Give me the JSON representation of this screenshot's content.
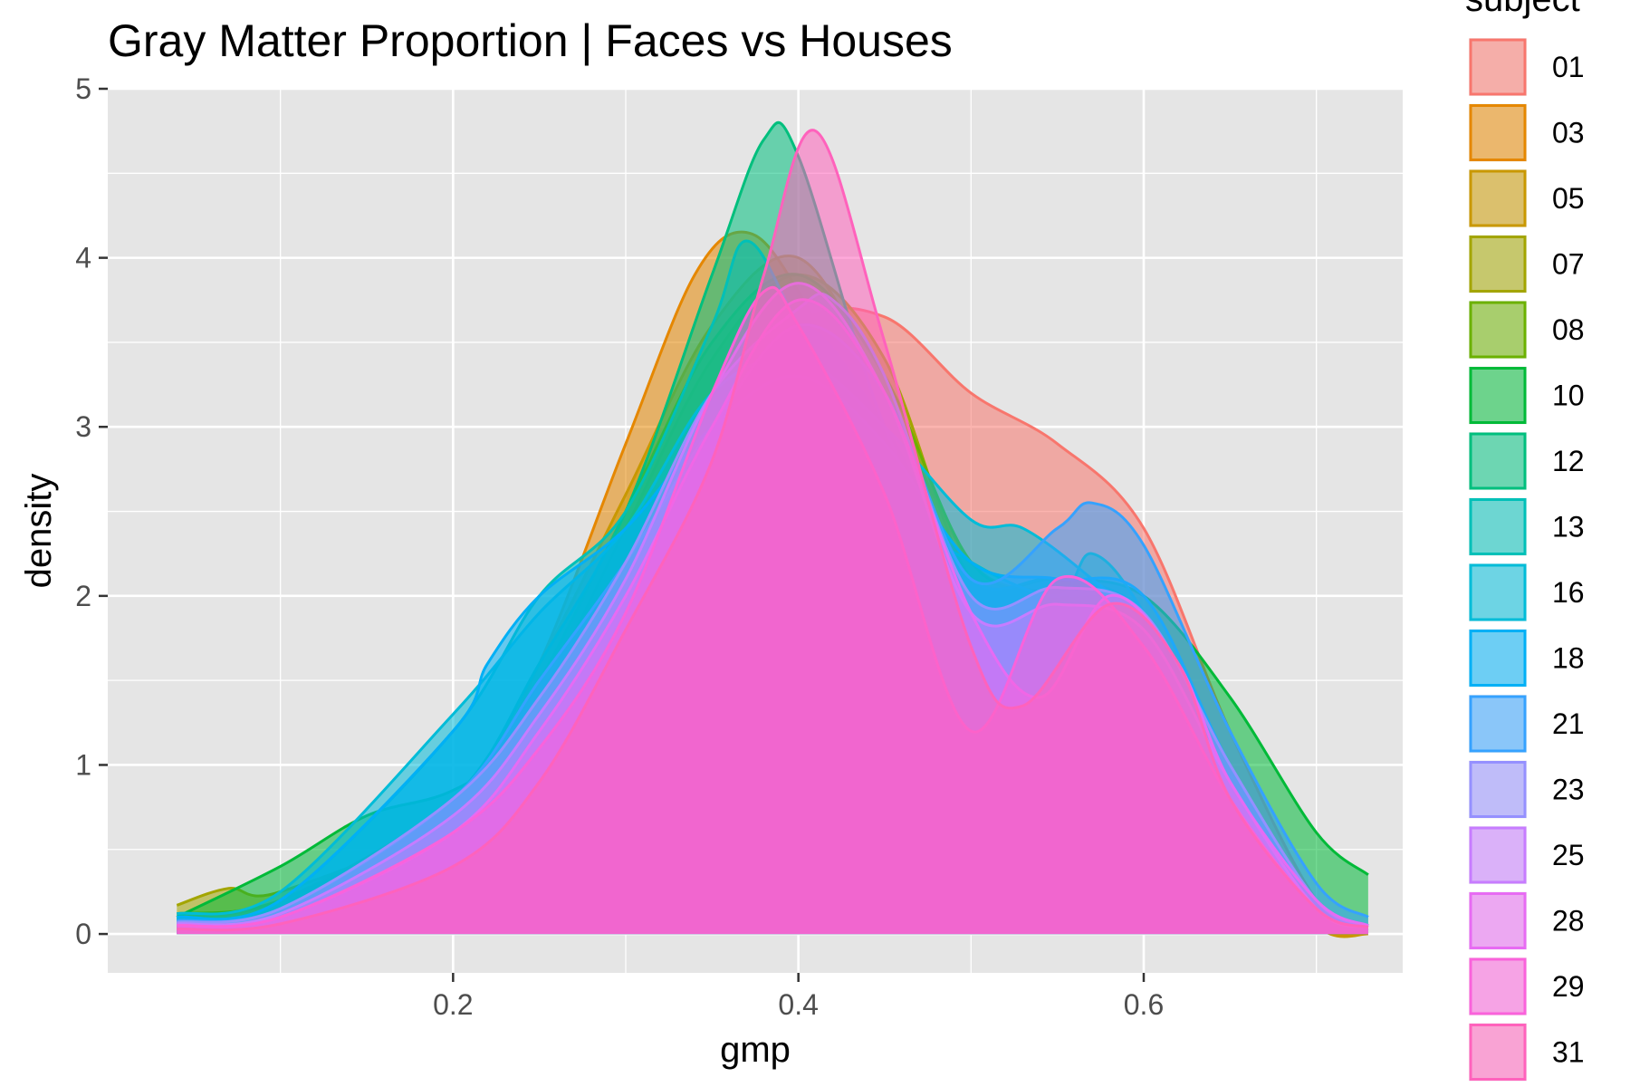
{
  "chart_data": {
    "type": "area",
    "subtype": "density",
    "title": "Gray Matter Proportion | Faces vs Houses",
    "xlabel": "gmp",
    "ylabel": "density",
    "xlim": [
      0.0,
      0.75
    ],
    "ylim": [
      -0.23,
      5.0
    ],
    "x_ticks": [
      0.2,
      0.4,
      0.6
    ],
    "x_tick_labels": [
      "0.2",
      "0.4",
      "0.6"
    ],
    "y_ticks": [
      0,
      1,
      2,
      3,
      4,
      5
    ],
    "y_tick_labels": [
      "0",
      "1",
      "2",
      "3",
      "4",
      "5"
    ],
    "grid": true,
    "panel_background": "#e5e5e5",
    "legend": {
      "title": "subject",
      "position": "right"
    },
    "series": [
      {
        "name": "01",
        "color": "#F8766D",
        "x": [
          0.04,
          0.1,
          0.2,
          0.25,
          0.3,
          0.35,
          0.4,
          0.45,
          0.5,
          0.55,
          0.6,
          0.65,
          0.7,
          0.73
        ],
        "y": [
          0.05,
          0.1,
          0.5,
          1.0,
          1.8,
          2.8,
          3.6,
          3.65,
          3.2,
          2.9,
          2.4,
          1.2,
          0.2,
          0.05
        ]
      },
      {
        "name": "03",
        "color": "#E58700",
        "x": [
          0.04,
          0.1,
          0.2,
          0.25,
          0.3,
          0.34,
          0.37,
          0.4,
          0.45,
          0.5,
          0.55,
          0.6,
          0.65,
          0.7,
          0.73
        ],
        "y": [
          0.05,
          0.15,
          0.7,
          1.6,
          2.9,
          3.9,
          4.15,
          3.8,
          2.8,
          2.1,
          2.0,
          1.7,
          0.6,
          0.05,
          0.0
        ]
      },
      {
        "name": "05",
        "color": "#C99800",
        "x": [
          0.04,
          0.1,
          0.2,
          0.25,
          0.3,
          0.35,
          0.4,
          0.45,
          0.5,
          0.55,
          0.6,
          0.65,
          0.7,
          0.73
        ],
        "y": [
          0.1,
          0.2,
          0.8,
          1.6,
          2.6,
          3.6,
          4.0,
          3.2,
          2.2,
          2.0,
          1.8,
          0.7,
          0.05,
          0.0
        ]
      },
      {
        "name": "07",
        "color": "#A3A500",
        "x": [
          0.04,
          0.07,
          0.1,
          0.2,
          0.25,
          0.3,
          0.35,
          0.4,
          0.45,
          0.5,
          0.55,
          0.6,
          0.65,
          0.7,
          0.73
        ],
        "y": [
          0.17,
          0.27,
          0.25,
          0.7,
          1.4,
          2.4,
          3.4,
          3.9,
          3.4,
          2.1,
          2.0,
          1.8,
          0.5,
          0.05,
          0.02
        ]
      },
      {
        "name": "08",
        "color": "#6BB100",
        "x": [
          0.04,
          0.1,
          0.2,
          0.25,
          0.3,
          0.35,
          0.4,
          0.45,
          0.5,
          0.55,
          0.6,
          0.65,
          0.7,
          0.73
        ],
        "y": [
          0.12,
          0.2,
          0.75,
          1.5,
          2.5,
          3.5,
          3.9,
          3.3,
          2.2,
          2.0,
          1.9,
          0.9,
          0.1,
          0.02
        ]
      },
      {
        "name": "10",
        "color": "#00BA38",
        "x": [
          0.04,
          0.1,
          0.15,
          0.2,
          0.25,
          0.3,
          0.35,
          0.4,
          0.45,
          0.5,
          0.55,
          0.6,
          0.65,
          0.7,
          0.73
        ],
        "y": [
          0.1,
          0.4,
          0.7,
          0.85,
          1.2,
          2.0,
          3.0,
          3.6,
          3.0,
          2.1,
          2.1,
          2.0,
          1.4,
          0.6,
          0.35
        ]
      },
      {
        "name": "12",
        "color": "#00BF7D",
        "x": [
          0.04,
          0.1,
          0.2,
          0.25,
          0.3,
          0.35,
          0.38,
          0.4,
          0.45,
          0.5,
          0.55,
          0.6,
          0.65,
          0.7,
          0.73
        ],
        "y": [
          0.08,
          0.15,
          0.8,
          1.6,
          2.5,
          3.9,
          4.7,
          4.6,
          3.0,
          2.1,
          2.1,
          1.9,
          1.0,
          0.2,
          0.05
        ]
      },
      {
        "name": "13",
        "color": "#00C0B8",
        "x": [
          0.04,
          0.1,
          0.2,
          0.25,
          0.3,
          0.35,
          0.37,
          0.4,
          0.45,
          0.5,
          0.55,
          0.57,
          0.6,
          0.65,
          0.7,
          0.73
        ],
        "y": [
          0.1,
          0.2,
          1.2,
          2.0,
          2.5,
          3.6,
          4.1,
          3.6,
          2.6,
          2.2,
          2.0,
          2.25,
          1.9,
          0.9,
          0.2,
          0.05
        ]
      },
      {
        "name": "16",
        "color": "#00BCD8",
        "x": [
          0.04,
          0.1,
          0.2,
          0.25,
          0.3,
          0.35,
          0.4,
          0.45,
          0.5,
          0.53,
          0.57,
          0.6,
          0.65,
          0.7,
          0.73
        ],
        "y": [
          0.12,
          0.25,
          1.3,
          1.9,
          2.4,
          3.2,
          3.4,
          3.0,
          2.45,
          2.4,
          2.1,
          1.8,
          0.9,
          0.2,
          0.05
        ]
      },
      {
        "name": "18",
        "color": "#00B0F6",
        "x": [
          0.04,
          0.1,
          0.2,
          0.22,
          0.25,
          0.3,
          0.35,
          0.4,
          0.45,
          0.5,
          0.55,
          0.6,
          0.65,
          0.7,
          0.73
        ],
        "y": [
          0.1,
          0.2,
          1.2,
          1.6,
          2.0,
          2.4,
          3.0,
          3.3,
          2.9,
          2.2,
          2.1,
          2.0,
          1.0,
          0.2,
          0.05
        ]
      },
      {
        "name": "21",
        "color": "#35A2FF",
        "x": [
          0.04,
          0.1,
          0.2,
          0.25,
          0.3,
          0.35,
          0.4,
          0.45,
          0.5,
          0.55,
          0.57,
          0.6,
          0.65,
          0.7,
          0.73
        ],
        "y": [
          0.08,
          0.15,
          0.8,
          1.5,
          2.2,
          3.0,
          3.6,
          3.2,
          2.1,
          2.4,
          2.55,
          2.3,
          1.2,
          0.3,
          0.1
        ]
      },
      {
        "name": "23",
        "color": "#9590FF",
        "x": [
          0.04,
          0.1,
          0.2,
          0.25,
          0.3,
          0.35,
          0.4,
          0.42,
          0.45,
          0.5,
          0.55,
          0.6,
          0.65,
          0.7,
          0.73
        ],
        "y": [
          0.07,
          0.15,
          0.8,
          1.4,
          2.2,
          3.2,
          3.7,
          3.75,
          3.3,
          2.0,
          2.05,
          1.9,
          1.0,
          0.2,
          0.05
        ]
      },
      {
        "name": "25",
        "color": "#C77CFF",
        "x": [
          0.04,
          0.1,
          0.2,
          0.25,
          0.3,
          0.35,
          0.4,
          0.45,
          0.5,
          0.55,
          0.6,
          0.65,
          0.7,
          0.73
        ],
        "y": [
          0.06,
          0.12,
          0.7,
          1.3,
          2.1,
          3.2,
          3.85,
          3.2,
          1.9,
          1.95,
          1.8,
          0.9,
          0.15,
          0.04
        ]
      },
      {
        "name": "28",
        "color": "#E76BF3",
        "x": [
          0.04,
          0.1,
          0.2,
          0.25,
          0.3,
          0.35,
          0.4,
          0.45,
          0.5,
          0.54,
          0.58,
          0.62,
          0.65,
          0.7,
          0.73
        ],
        "y": [
          0.05,
          0.1,
          0.6,
          1.2,
          2.0,
          3.0,
          3.75,
          3.2,
          1.9,
          1.4,
          2.0,
          1.6,
          0.9,
          0.2,
          0.05
        ]
      },
      {
        "name": "29",
        "color": "#FA62DB",
        "x": [
          0.04,
          0.1,
          0.2,
          0.25,
          0.3,
          0.35,
          0.38,
          0.4,
          0.45,
          0.5,
          0.55,
          0.6,
          0.65,
          0.7,
          0.73
        ],
        "y": [
          0.05,
          0.1,
          0.6,
          1.1,
          1.9,
          3.2,
          3.8,
          3.6,
          2.6,
          1.2,
          2.1,
          1.7,
          0.8,
          0.15,
          0.04
        ]
      },
      {
        "name": "31",
        "color": "#FF62BC",
        "x": [
          0.04,
          0.1,
          0.2,
          0.25,
          0.3,
          0.35,
          0.38,
          0.41,
          0.45,
          0.5,
          0.53,
          0.58,
          0.62,
          0.65,
          0.7,
          0.73
        ],
        "y": [
          0.03,
          0.06,
          0.4,
          0.9,
          1.8,
          2.8,
          3.9,
          4.75,
          3.5,
          1.7,
          1.35,
          1.95,
          1.6,
          0.8,
          0.15,
          0.04
        ]
      }
    ]
  }
}
